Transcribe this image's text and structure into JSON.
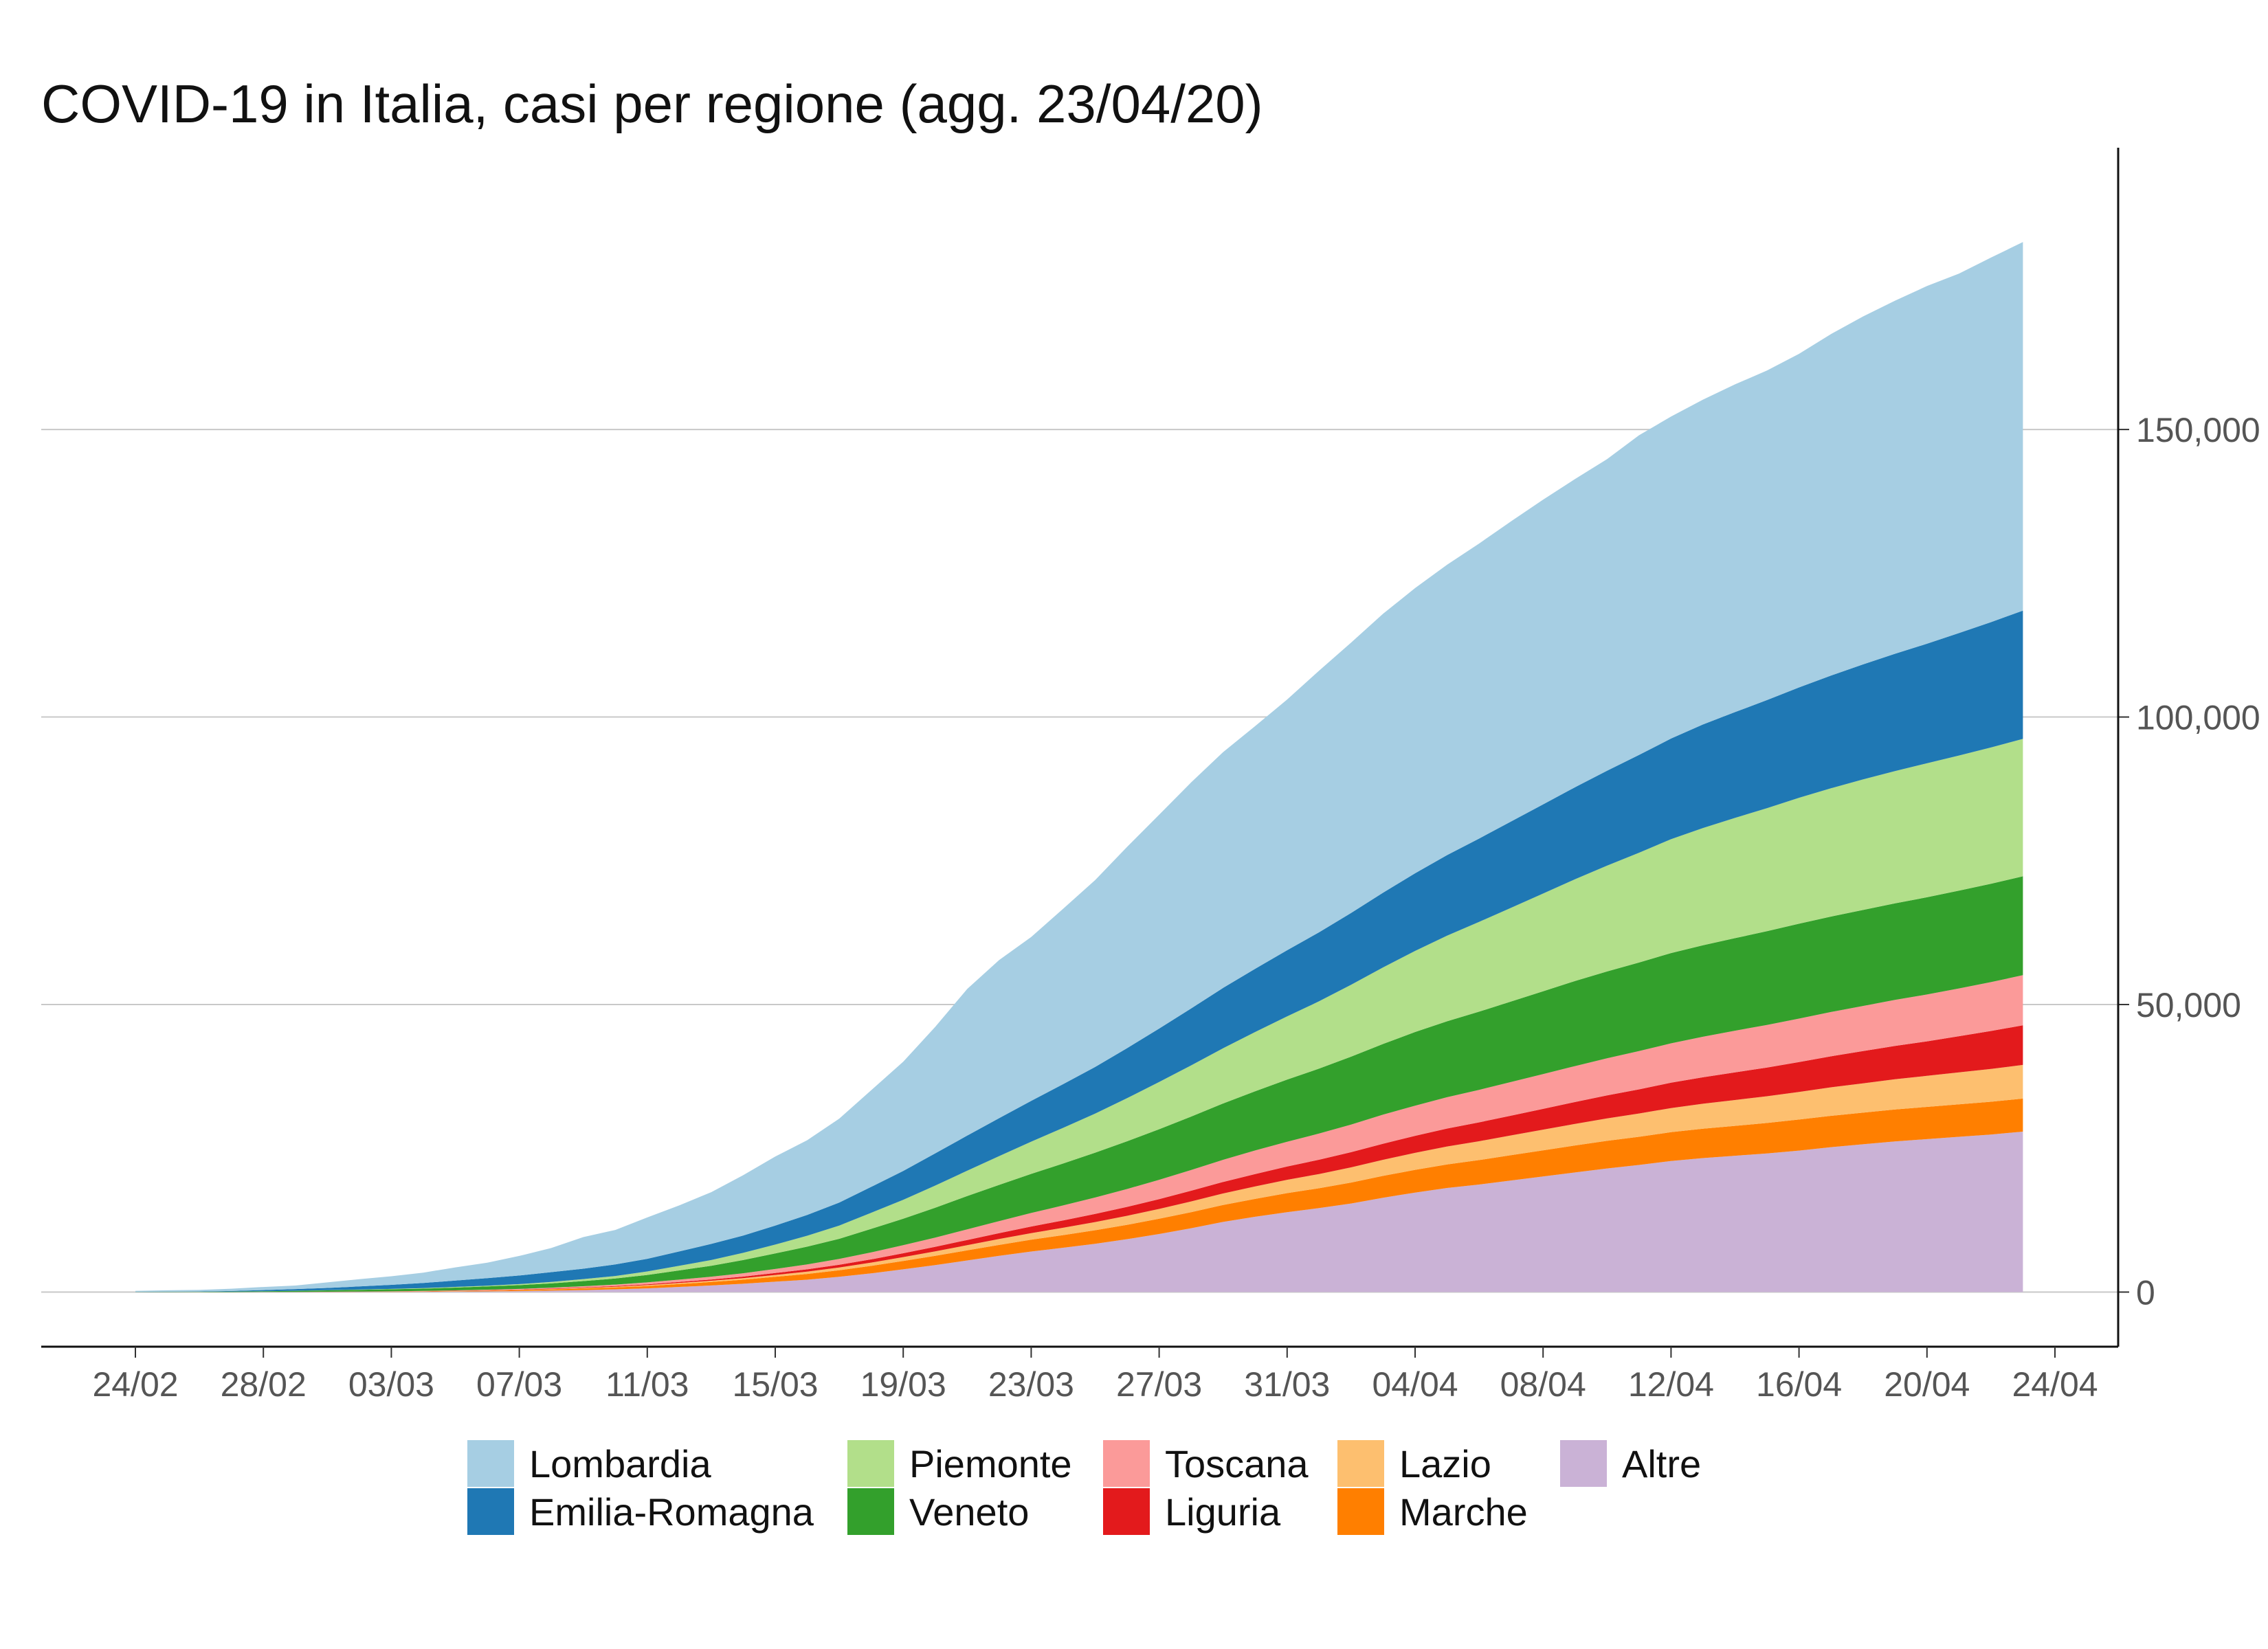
{
  "chart_data": {
    "type": "area",
    "stacked": true,
    "title": "COVID-19 in Italia, casi per regione (agg. 23/04/20)",
    "xlabel": "",
    "ylabel": "",
    "x_tick_labels": [
      "24/02",
      "28/02",
      "03/03",
      "07/03",
      "11/03",
      "15/03",
      "19/03",
      "23/03",
      "27/03",
      "31/03",
      "04/04",
      "08/04",
      "12/04",
      "16/04",
      "20/04",
      "24/04"
    ],
    "y_ticks": [
      0,
      50000,
      100000,
      150000
    ],
    "y_tick_labels": [
      "0",
      "50,000",
      "100,000",
      "150,000"
    ],
    "ylim": [
      -9500,
      199000
    ],
    "y_axis_position": "right",
    "grid": "horizontal",
    "legend_position": "bottom",
    "x": [
      "24/02",
      "25/02",
      "26/02",
      "27/02",
      "28/02",
      "29/02",
      "01/03",
      "02/03",
      "03/03",
      "04/03",
      "05/03",
      "06/03",
      "07/03",
      "08/03",
      "09/03",
      "10/03",
      "11/03",
      "12/03",
      "13/03",
      "14/03",
      "15/03",
      "16/03",
      "17/03",
      "18/03",
      "19/03",
      "20/03",
      "21/03",
      "22/03",
      "23/03",
      "24/03",
      "25/03",
      "26/03",
      "27/03",
      "28/03",
      "29/03",
      "30/03",
      "31/03",
      "01/04",
      "02/04",
      "03/04",
      "04/04",
      "05/04",
      "06/04",
      "07/04",
      "08/04",
      "09/04",
      "10/04",
      "11/04",
      "12/04",
      "13/04",
      "14/04",
      "15/04",
      "16/04",
      "17/04",
      "18/04",
      "19/04",
      "20/04",
      "21/04",
      "22/04",
      "23/04"
    ],
    "series": [
      {
        "name": "Altre",
        "color": "#cab2d6",
        "values": [
          0,
          1,
          2,
          3,
          5,
          8,
          12,
          20,
          30,
          50,
          80,
          120,
          170,
          250,
          350,
          480,
          650,
          900,
          1150,
          1450,
          1800,
          2150,
          2650,
          3250,
          3950,
          4700,
          5500,
          6300,
          7050,
          7700,
          8400,
          9200,
          10100,
          11100,
          12200,
          13100,
          13900,
          14600,
          15400,
          16400,
          17300,
          18100,
          18700,
          19400,
          20100,
          20800,
          21500,
          22100,
          22800,
          23300,
          23700,
          24100,
          24600,
          25200,
          25700,
          26200,
          26600,
          27000,
          27400,
          27900
        ]
      },
      {
        "name": "Marche",
        "color": "#ff7f00",
        "values": [
          0,
          0,
          0,
          0,
          0,
          2,
          8,
          15,
          25,
          50,
          80,
          110,
          150,
          200,
          260,
          320,
          400,
          500,
          600,
          700,
          850,
          1000,
          1150,
          1300,
          1450,
          1600,
          1750,
          1900,
          2050,
          2200,
          2350,
          2500,
          2650,
          2800,
          2950,
          3100,
          3300,
          3450,
          3650,
          3800,
          3950,
          4100,
          4250,
          4400,
          4550,
          4700,
          4800,
          4900,
          5000,
          5100,
          5200,
          5300,
          5400,
          5450,
          5500,
          5550,
          5600,
          5650,
          5700,
          5750
        ]
      },
      {
        "name": "Lazio",
        "color": "#fdbf6f",
        "values": [
          0,
          0,
          0,
          0,
          0,
          0,
          5,
          10,
          15,
          20,
          30,
          45,
          60,
          80,
          100,
          120,
          150,
          180,
          220,
          270,
          330,
          400,
          480,
          570,
          680,
          790,
          900,
          1020,
          1150,
          1280,
          1420,
          1560,
          1710,
          1860,
          2000,
          2160,
          2320,
          2480,
          2640,
          2800,
          2960,
          3120,
          3280,
          3440,
          3600,
          3750,
          3900,
          4050,
          4200,
          4350,
          4500,
          4650,
          4800,
          4950,
          5100,
          5250,
          5400,
          5550,
          5700,
          5850
        ]
      },
      {
        "name": "Liguria",
        "color": "#e31a1c",
        "values": [
          0,
          0,
          0,
          0,
          10,
          15,
          20,
          25,
          30,
          40,
          50,
          60,
          70,
          80,
          100,
          120,
          150,
          180,
          220,
          270,
          330,
          400,
          480,
          570,
          670,
          780,
          900,
          1020,
          1150,
          1280,
          1420,
          1560,
          1710,
          1860,
          2000,
          2160,
          2320,
          2480,
          2640,
          2800,
          2960,
          3120,
          3280,
          3440,
          3600,
          3800,
          4000,
          4200,
          4400,
          4600,
          4800,
          5000,
          5200,
          5400,
          5600,
          5800,
          6000,
          6300,
          6600,
          6900
        ]
      },
      {
        "name": "Toscana",
        "color": "#fb9a99",
        "values": [
          0,
          0,
          0,
          0,
          5,
          10,
          15,
          20,
          30,
          40,
          60,
          80,
          100,
          150,
          200,
          260,
          330,
          400,
          480,
          580,
          700,
          850,
          1000,
          1200,
          1400,
          1600,
          1850,
          2100,
          2350,
          2600,
          2850,
          3100,
          3350,
          3600,
          3850,
          4100,
          4300,
          4550,
          4800,
          5050,
          5250,
          5450,
          5650,
          5850,
          6050,
          6250,
          6450,
          6650,
          6850,
          7050,
          7250,
          7400,
          7550,
          7700,
          7850,
          8000,
          8150,
          8300,
          8500,
          8700
        ]
      },
      {
        "name": "Veneto",
        "color": "#33a02c",
        "values": [
          30,
          40,
          50,
          80,
          120,
          180,
          240,
          300,
          360,
          400,
          480,
          560,
          650,
          750,
          900,
          1050,
          1300,
          1600,
          1900,
          2300,
          2700,
          3100,
          3500,
          4100,
          4600,
          5200,
          5800,
          6300,
          6800,
          7300,
          7800,
          8300,
          8800,
          9300,
          9800,
          10300,
          10800,
          11300,
          11800,
          12300,
          12800,
          13200,
          13600,
          14000,
          14400,
          14800,
          15100,
          15400,
          15700,
          15900,
          16100,
          16300,
          16500,
          16600,
          16700,
          16800,
          16900,
          17000,
          17100,
          17200
        ]
      },
      {
        "name": "Piemonte",
        "color": "#b2df8a",
        "values": [
          0,
          0,
          2,
          3,
          10,
          15,
          20,
          40,
          60,
          80,
          110,
          140,
          180,
          250,
          350,
          450,
          600,
          800,
          1000,
          1250,
          1550,
          1900,
          2300,
          2800,
          3300,
          3850,
          4400,
          5000,
          5600,
          6200,
          6800,
          7500,
          8200,
          8900,
          9600,
          10300,
          11000,
          11700,
          12500,
          13300,
          14100,
          14900,
          15600,
          16300,
          17000,
          17700,
          18400,
          19100,
          19800,
          20400,
          20900,
          21400,
          21900,
          22300,
          22700,
          23000,
          23300,
          23500,
          23700,
          23900
        ]
      },
      {
        "name": "Emilia-Romagna",
        "color": "#1f78b4",
        "values": [
          20,
          30,
          50,
          100,
          200,
          300,
          400,
          550,
          700,
          900,
          1100,
          1300,
          1500,
          1700,
          1800,
          2000,
          2200,
          2500,
          2800,
          3000,
          3300,
          3600,
          4000,
          4500,
          5000,
          5600,
          6100,
          6600,
          7100,
          7600,
          8100,
          8700,
          9300,
          9900,
          10500,
          11000,
          11500,
          12000,
          12500,
          13000,
          13500,
          14000,
          14500,
          15000,
          15500,
          16000,
          16500,
          17000,
          17500,
          18000,
          18400,
          18800,
          19200,
          19600,
          20000,
          20400,
          20800,
          21300,
          21800,
          22300
        ]
      },
      {
        "name": "Lombardia",
        "color": "#a6cee3",
        "values": [
          170,
          240,
          260,
          400,
          530,
          600,
          960,
          1250,
          1500,
          1800,
          2300,
          2700,
          3400,
          4200,
          5500,
          6000,
          7200,
          8000,
          9000,
          10500,
          12000,
          13000,
          14600,
          16800,
          19000,
          22000,
          25500,
          27500,
          28500,
          30500,
          32500,
          35000,
          37200,
          39300,
          41000,
          42200,
          43600,
          45500,
          47000,
          48500,
          49600,
          50500,
          51300,
          52200,
          53000,
          53600,
          54200,
          55600,
          56000,
          56500,
          57000,
          57300,
          58000,
          59400,
          60500,
          61400,
          62200,
          62500,
          63400,
          64100
        ]
      }
    ],
    "legend_order": [
      "Lombardia",
      "Emilia-Romagna",
      "Piemonte",
      "Veneto",
      "Toscana",
      "Liguria",
      "Lazio",
      "Marche",
      "Altre"
    ]
  }
}
